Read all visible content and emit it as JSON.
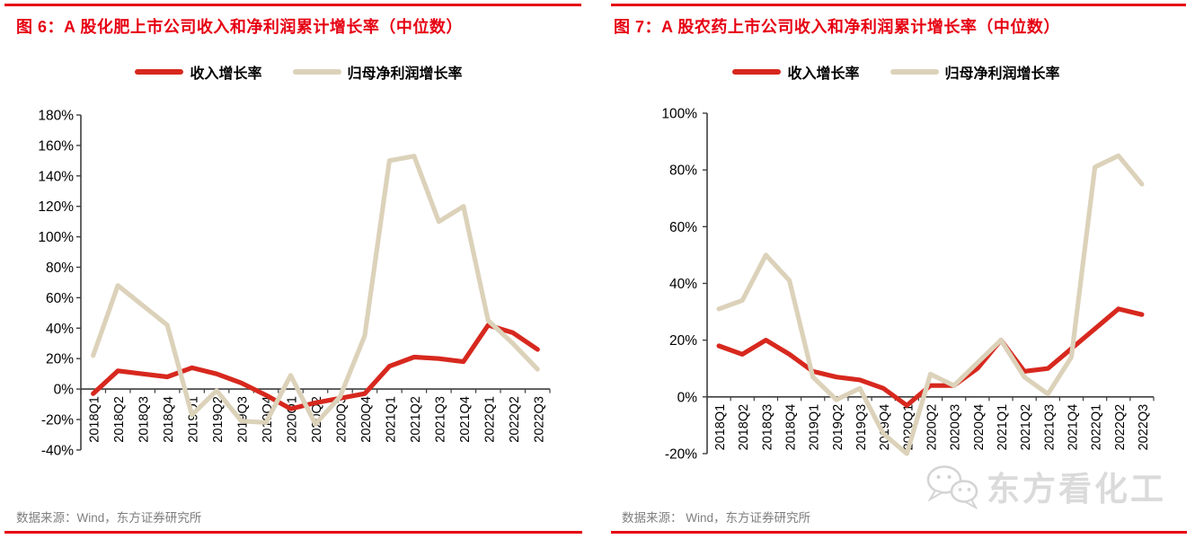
{
  "page": {
    "watermark_text": "东方看化工"
  },
  "colors": {
    "accent_red": "#E60012",
    "line_revenue": "#D7281E",
    "line_profit": "#DCD2BA",
    "axis": "#3f3f3f",
    "tick_text": "#000000",
    "source_gray": "#7f7f7f",
    "watermark_gray": "#c6c6c6"
  },
  "figures": [
    {
      "title": "图 6：A 股化肥上市公司收入和净利润累计增长率（中位数）",
      "legend": [
        {
          "label": "收入增长率",
          "color_key": "line_revenue"
        },
        {
          "label": "归母净利润增长率",
          "color_key": "line_profit"
        }
      ],
      "source": "数据来源：Wind，东方证券研究所",
      "chart_data": {
        "type": "line",
        "title": "A股化肥上市公司收入和净利润累计增长率（中位数）",
        "categories": [
          "2018Q1",
          "2018Q2",
          "2018Q3",
          "2018Q4",
          "2019Q1",
          "2019Q2",
          "2019Q3",
          "2019Q4",
          "2020Q1",
          "2020Q2",
          "2020Q3",
          "2020Q4",
          "2021Q1",
          "2021Q2",
          "2021Q3",
          "2021Q4",
          "2022Q1",
          "2022Q2",
          "2022Q3"
        ],
        "series": [
          {
            "name": "收入增长率",
            "color_key": "line_revenue",
            "values": [
              -3,
              12,
              10,
              8,
              14,
              10,
              4,
              -4,
              -13,
              -9,
              -6,
              -3,
              15,
              21,
              20,
              18,
              42,
              37,
              26
            ]
          },
          {
            "name": "归母净利润增长率",
            "color_key": "line_profit",
            "values": [
              22,
              68,
              55,
              42,
              -17,
              -1,
              -21,
              -22,
              9,
              -23,
              -5,
              35,
              150,
              153,
              110,
              120,
              45,
              30,
              13
            ]
          }
        ],
        "ylabel": "",
        "xlabel": "",
        "ylim": [
          -40,
          180
        ],
        "ytick_step": 20,
        "ytick_format": "percent",
        "grid": false,
        "legend_position": "top"
      }
    },
    {
      "title": "图 7：A 股农药上市公司收入和净利润累计增长率（中位数）",
      "legend": [
        {
          "label": "收入增长率",
          "color_key": "line_revenue"
        },
        {
          "label": "归母净利润增长率",
          "color_key": "line_profit"
        }
      ],
      "source": "数据来源： Wind，东方证券研究所",
      "chart_data": {
        "type": "line",
        "title": "A股农药上市公司收入和净利润累计增长率（中位数）",
        "categories": [
          "2018Q1",
          "2018Q2",
          "2018Q3",
          "2018Q4",
          "2019Q1",
          "2019Q2",
          "2019Q3",
          "2019Q4",
          "2020Q1",
          "2020Q2",
          "2020Q3",
          "2020Q4",
          "2021Q1",
          "2021Q2",
          "2021Q3",
          "2021Q4",
          "2022Q1",
          "2022Q2",
          "2022Q3"
        ],
        "series": [
          {
            "name": "收入增长率",
            "color_key": "line_revenue",
            "values": [
              18,
              15,
              20,
              15,
              9,
              7,
              6,
              3,
              -3,
              4,
              4,
              10,
              20,
              9,
              10,
              17,
              24,
              31,
              29
            ]
          },
          {
            "name": "归母净利润增长率",
            "color_key": "line_profit",
            "values": [
              31,
              34,
              50,
              41,
              7,
              -1,
              3,
              -13,
              -20,
              8,
              4,
              12,
              20,
              7,
              1,
              14,
              81,
              85,
              75
            ]
          }
        ],
        "ylabel": "",
        "xlabel": "",
        "ylim": [
          -20,
          100
        ],
        "ytick_step": 20,
        "ytick_format": "percent",
        "grid": false,
        "legend_position": "top"
      }
    }
  ]
}
